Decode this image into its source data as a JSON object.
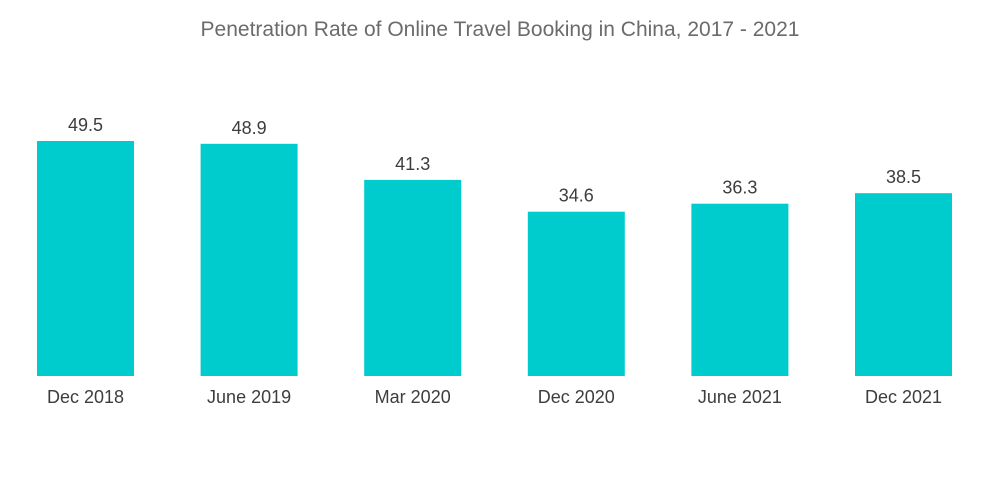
{
  "chart_data": {
    "type": "bar",
    "title": "Penetration Rate of Online Travel Booking in China, 2017 - 2021",
    "categories": [
      "Dec 2018",
      "June 2019",
      "Mar 2020",
      "Dec 2020",
      "June 2021",
      "Dec 2021"
    ],
    "values": [
      49.5,
      48.9,
      41.3,
      34.6,
      36.3,
      38.5
    ],
    "xlabel": "",
    "ylabel": "",
    "ylim": [
      0,
      49.5
    ],
    "grid": false,
    "legend": "none",
    "bar_color": "#00cccd"
  }
}
